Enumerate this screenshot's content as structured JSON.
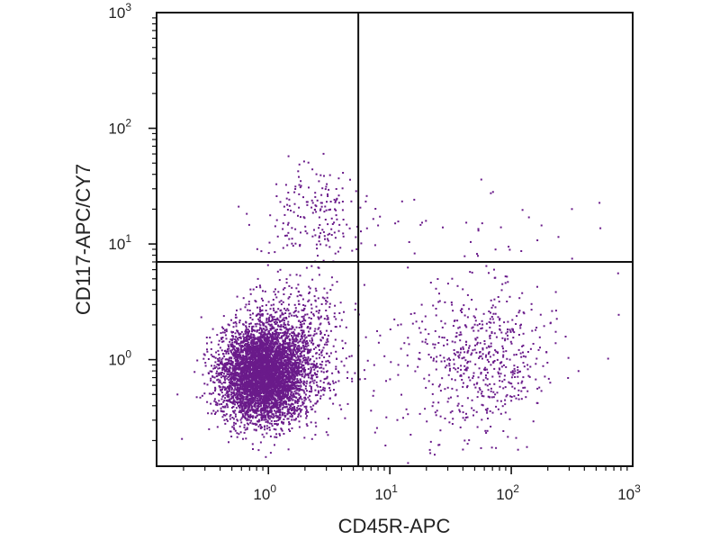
{
  "chart_data": {
    "type": "scatter",
    "xlabel": "CD45R-APC",
    "ylabel": "CD117-APC/CY7",
    "x_scale": "log",
    "y_scale": "log",
    "xlim": [
      0.12,
      1000
    ],
    "ylim": [
      0.12,
      1000
    ],
    "x_ticks": [
      {
        "value": 1,
        "base": "10",
        "exp": "0"
      },
      {
        "value": 10,
        "base": "10",
        "exp": "1"
      },
      {
        "value": 100,
        "base": "10",
        "exp": "2"
      },
      {
        "value": 1000,
        "base": "10",
        "exp": "3"
      }
    ],
    "y_ticks": [
      {
        "value": 1,
        "base": "10",
        "exp": "0"
      },
      {
        "value": 10,
        "base": "10",
        "exp": "1"
      },
      {
        "value": 100,
        "base": "10",
        "exp": "2"
      },
      {
        "value": 1000,
        "base": "10",
        "exp": "3"
      }
    ],
    "quadrant_gates": {
      "x": 5.5,
      "y": 7
    },
    "point_color": "#6a1b8a",
    "grid": false,
    "populations": [
      {
        "center_x": 0.9,
        "center_y": 0.75,
        "spread_x_log10": 0.17,
        "spread_y_log10": 0.2,
        "count": 5200
      },
      {
        "center_x": 1.7,
        "center_y": 1.3,
        "spread_x_log10": 0.2,
        "spread_y_log10": 0.3,
        "count": 700
      },
      {
        "center_x": 2.5,
        "center_y": 18,
        "spread_x_log10": 0.22,
        "spread_y_log10": 0.22,
        "count": 190
      },
      {
        "center_x": 60,
        "center_y": 1.0,
        "spread_x_log10": 0.28,
        "spread_y_log10": 0.3,
        "count": 520
      },
      {
        "center_x": 22,
        "center_y": 0.7,
        "spread_x_log10": 0.35,
        "spread_y_log10": 0.35,
        "count": 90
      },
      {
        "center_x": 60,
        "center_y": 12,
        "spread_x_log10": 0.5,
        "spread_y_log10": 0.25,
        "count": 40
      }
    ]
  }
}
